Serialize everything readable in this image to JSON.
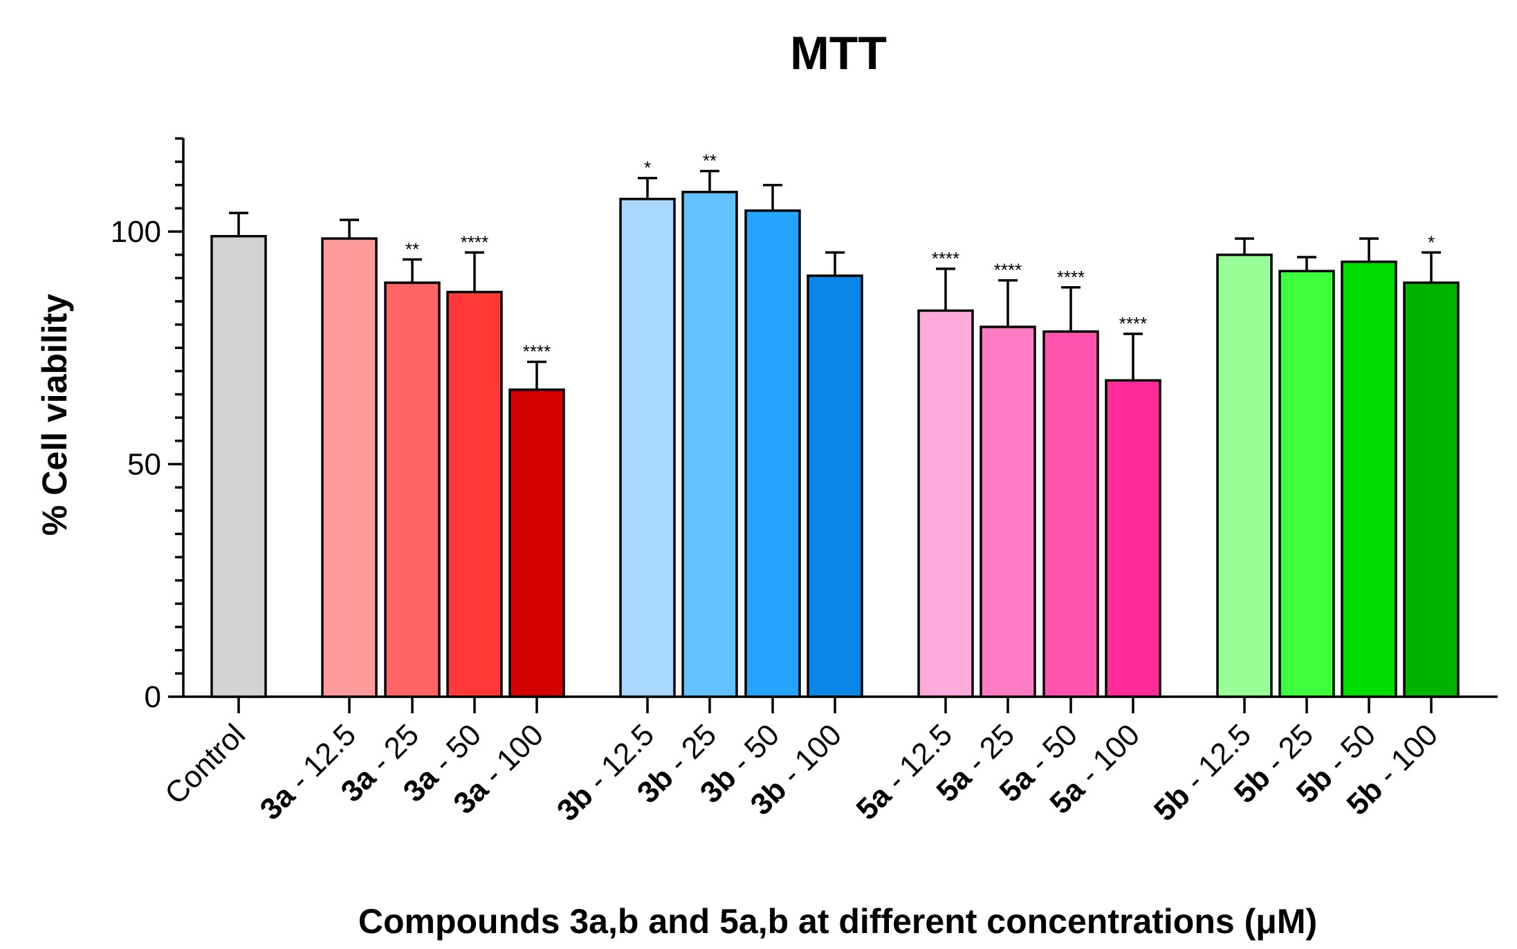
{
  "chart_data": {
    "type": "bar",
    "title": "MTT",
    "xlabel": "Compounds 3a,b and 5a,b at different concentrations (μM)",
    "ylabel": "% Cell viability",
    "ylim": [
      0,
      120
    ],
    "yticks": [
      "0",
      "50",
      "100"
    ],
    "ytick_values": [
      0,
      50,
      100
    ],
    "minor_tick_step": 5,
    "categories": [
      {
        "compound": "",
        "concentration": "Control",
        "value": 99,
        "error": 5,
        "sig": "",
        "color": "#d3d3d3"
      },
      {
        "compound": "3a",
        "concentration": " - 12.5",
        "value": 98.5,
        "error": 4,
        "sig": "",
        "color": "#ff9a9a"
      },
      {
        "compound": "3a",
        "concentration": " - 25",
        "value": 89,
        "error": 5,
        "sig": "**",
        "color": "#ff6464"
      },
      {
        "compound": "3a",
        "concentration": " - 50",
        "value": 87,
        "error": 8.5,
        "sig": "****",
        "color": "#ff3838"
      },
      {
        "compound": "3a",
        "concentration": " - 100",
        "value": 66,
        "error": 6,
        "sig": "****",
        "color": "#d40000"
      },
      {
        "compound": "3b",
        "concentration": " - 12.5",
        "value": 107,
        "error": 4.5,
        "sig": "*",
        "color": "#a8d8ff"
      },
      {
        "compound": "3b",
        "concentration": " - 25",
        "value": 108.5,
        "error": 4.5,
        "sig": "**",
        "color": "#63c1ff"
      },
      {
        "compound": "3b",
        "concentration": " - 50",
        "value": 104.5,
        "error": 5.5,
        "sig": "",
        "color": "#24a4ff"
      },
      {
        "compound": "3b",
        "concentration": " - 100",
        "value": 90.5,
        "error": 5,
        "sig": "",
        "color": "#0a86e6"
      },
      {
        "compound": "5a",
        "concentration": " - 12.5",
        "value": 83,
        "error": 9,
        "sig": "****",
        "color": "#ffaad8"
      },
      {
        "compound": "5a",
        "concentration": " - 25",
        "value": 79.5,
        "error": 10,
        "sig": "****",
        "color": "#ff7cc4"
      },
      {
        "compound": "5a",
        "concentration": " - 50",
        "value": 78.5,
        "error": 9.5,
        "sig": "****",
        "color": "#ff54ae"
      },
      {
        "compound": "5a",
        "concentration": " - 100",
        "value": 68,
        "error": 10,
        "sig": "****",
        "color": "#ff2b98"
      },
      {
        "compound": "5b",
        "concentration": " - 12.5",
        "value": 95,
        "error": 3.5,
        "sig": "",
        "color": "#98ff98"
      },
      {
        "compound": "5b",
        "concentration": " - 25",
        "value": 91.5,
        "error": 3,
        "sig": "",
        "color": "#3dff3d"
      },
      {
        "compound": "5b",
        "concentration": " - 50",
        "value": 93.5,
        "error": 5,
        "sig": "",
        "color": "#00dd00"
      },
      {
        "compound": "5b",
        "concentration": " - 100",
        "value": 89,
        "error": 6.5,
        "sig": "*",
        "color": "#00b300"
      }
    ],
    "grid": false,
    "legend": "none"
  }
}
